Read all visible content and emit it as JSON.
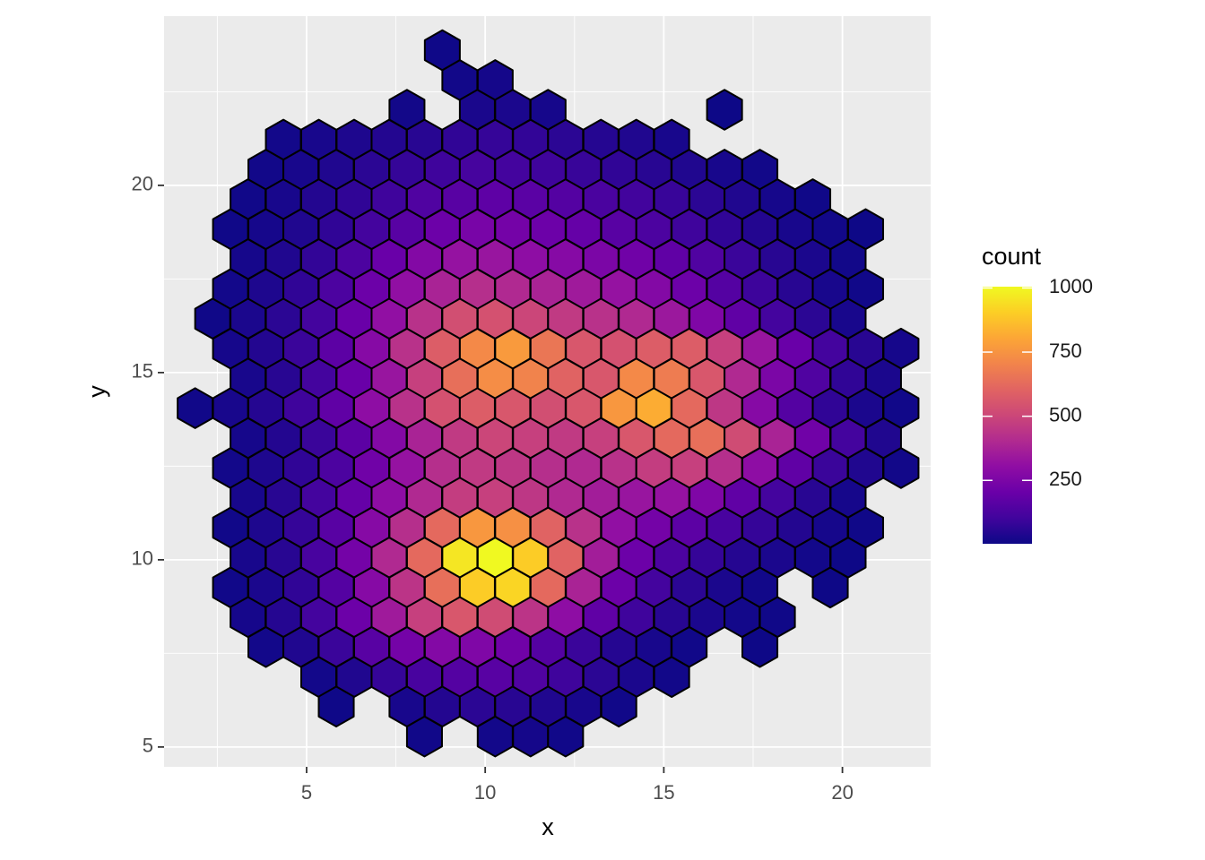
{
  "chart_data": {
    "type": "hexbin",
    "x_label": "x",
    "y_label": "y",
    "legend_title": "count",
    "xlim": [
      1.01,
      22.47
    ],
    "ylim": [
      4.47,
      24.52
    ],
    "xticks": [
      5,
      10,
      15,
      20
    ],
    "yticks": [
      5,
      10,
      15,
      20
    ],
    "grid": true,
    "legend_position": "right",
    "colorbar_ticks": [
      250,
      500,
      750,
      1000
    ],
    "colors": [
      "#0d0887",
      "#41049d",
      "#6a00a8",
      "#8f0da4",
      "#b12a90",
      "#cc4778",
      "#e16462",
      "#f2844b",
      "#fca636",
      "#fcce25",
      "#f0f921"
    ],
    "edgecolor": "#000000",
    "rows": [
      {
        "y": 23.61,
        "x": [
          8.8
        ],
        "values": [
          6
        ]
      },
      {
        "y": 22.81,
        "x": [
          9.29,
          10.28
        ],
        "values": [
          12,
          18
        ]
      },
      {
        "y": 22.02,
        "x": [
          7.81,
          9.78,
          10.77,
          11.76,
          16.7
        ],
        "values": [
          14,
          28,
          30,
          20,
          3
        ]
      },
      {
        "y": 21.22,
        "x": [
          4.35,
          5.34,
          6.33,
          7.31,
          8.3,
          9.29,
          10.28,
          11.27,
          12.25,
          13.24,
          14.23,
          15.22
        ],
        "values": [
          15,
          25,
          35,
          45,
          55,
          70,
          80,
          75,
          60,
          50,
          40,
          25
        ]
      },
      {
        "y": 20.42,
        "x": [
          3.86,
          4.84,
          5.83,
          6.82,
          7.81,
          8.8,
          9.78,
          10.77,
          11.76,
          12.75,
          13.74,
          14.72,
          15.71,
          16.7,
          17.69
        ],
        "values": [
          12,
          25,
          40,
          60,
          80,
          100,
          115,
          110,
          100,
          85,
          70,
          55,
          40,
          25,
          12
        ]
      },
      {
        "y": 19.63,
        "x": [
          3.36,
          4.35,
          5.34,
          6.33,
          7.31,
          8.3,
          9.29,
          10.28,
          11.27,
          12.25,
          13.24,
          14.23,
          15.22,
          16.21,
          17.19,
          18.18,
          19.17
        ],
        "values": [
          10,
          25,
          45,
          70,
          100,
          140,
          160,
          175,
          165,
          150,
          125,
          105,
          85,
          60,
          40,
          20,
          8
        ]
      },
      {
        "y": 18.83,
        "x": [
          2.87,
          3.86,
          4.84,
          5.83,
          6.82,
          7.81,
          8.8,
          9.78,
          10.77,
          11.76,
          12.75,
          13.74,
          14.72,
          15.71,
          16.7,
          17.69,
          18.68,
          19.66,
          20.65
        ],
        "values": [
          8,
          20,
          40,
          70,
          110,
          160,
          210,
          240,
          230,
          210,
          190,
          160,
          130,
          100,
          70,
          45,
          25,
          12,
          5
        ]
      },
      {
        "y": 18.03,
        "x": [
          3.36,
          4.35,
          5.34,
          6.33,
          7.31,
          8.3,
          9.29,
          10.28,
          11.27,
          12.25,
          13.24,
          14.23,
          15.22,
          16.21,
          17.19,
          18.18,
          19.17,
          20.16
        ],
        "values": [
          20,
          40,
          75,
          130,
          200,
          270,
          320,
          330,
          300,
          280,
          250,
          220,
          180,
          140,
          90,
          55,
          30,
          12
        ]
      },
      {
        "y": 17.23,
        "x": [
          2.87,
          3.86,
          4.84,
          5.83,
          6.82,
          7.81,
          8.8,
          9.78,
          10.77,
          11.76,
          12.75,
          13.74,
          14.72,
          15.71,
          16.7,
          17.69,
          18.68,
          19.66,
          20.65
        ],
        "values": [
          15,
          35,
          70,
          130,
          210,
          310,
          380,
          420,
          400,
          380,
          350,
          320,
          270,
          210,
          150,
          95,
          55,
          25,
          10
        ]
      },
      {
        "y": 16.44,
        "x": [
          2.37,
          3.36,
          4.35,
          5.34,
          6.33,
          7.31,
          8.3,
          9.29,
          10.28,
          11.27,
          12.25,
          13.24,
          14.23,
          15.22,
          16.21,
          17.19,
          18.18,
          19.17,
          20.16
        ],
        "values": [
          8,
          30,
          60,
          110,
          200,
          310,
          430,
          530,
          540,
          500,
          460,
          430,
          400,
          340,
          260,
          180,
          110,
          60,
          25
        ]
      },
      {
        "y": 15.64,
        "x": [
          2.87,
          3.86,
          4.84,
          5.83,
          6.82,
          7.81,
          8.8,
          9.78,
          10.77,
          11.76,
          12.75,
          13.74,
          14.72,
          15.71,
          16.7,
          17.69,
          18.68,
          19.66,
          20.65,
          21.64
        ],
        "values": [
          20,
          45,
          90,
          170,
          280,
          430,
          580,
          720,
          770,
          660,
          560,
          540,
          580,
          580,
          480,
          330,
          200,
          110,
          55,
          20
        ]
      },
      {
        "y": 14.84,
        "x": [
          3.36,
          4.35,
          5.34,
          6.33,
          7.31,
          8.3,
          9.29,
          10.28,
          11.27,
          12.25,
          13.24,
          14.23,
          15.22,
          16.21,
          17.19,
          18.18,
          19.17,
          20.16,
          21.15
        ],
        "values": [
          25,
          55,
          110,
          200,
          330,
          480,
          640,
          730,
          700,
          600,
          560,
          720,
          680,
          560,
          400,
          250,
          140,
          70,
          30
        ]
      },
      {
        "y": 14.05,
        "x": [
          1.88,
          2.87,
          3.86,
          4.84,
          5.83,
          6.82,
          7.81,
          8.8,
          9.78,
          10.77,
          11.76,
          12.75,
          13.74,
          14.72,
          15.71,
          16.7,
          17.69,
          18.68,
          19.66,
          20.65,
          21.64
        ],
        "values": [
          10,
          25,
          50,
          100,
          180,
          300,
          430,
          540,
          580,
          560,
          530,
          560,
          760,
          820,
          620,
          450,
          280,
          150,
          70,
          30,
          10
        ]
      },
      {
        "y": 13.25,
        "x": [
          3.36,
          4.35,
          5.34,
          6.33,
          7.31,
          8.3,
          9.29,
          10.28,
          11.27,
          12.25,
          13.24,
          14.23,
          15.22,
          16.21,
          17.19,
          18.18,
          19.17,
          20.16,
          21.15
        ],
        "values": [
          20,
          45,
          90,
          170,
          270,
          380,
          460,
          500,
          480,
          460,
          480,
          560,
          620,
          640,
          520,
          380,
          220,
          110,
          40
        ]
      },
      {
        "y": 12.45,
        "x": [
          2.87,
          3.86,
          4.84,
          5.83,
          6.82,
          7.81,
          8.8,
          9.78,
          10.77,
          11.76,
          12.75,
          13.74,
          14.72,
          15.71,
          16.7,
          17.69,
          18.68,
          19.66,
          20.65,
          21.64
        ],
        "values": [
          15,
          35,
          70,
          130,
          220,
          320,
          420,
          460,
          450,
          420,
          400,
          430,
          470,
          480,
          420,
          300,
          180,
          90,
          40,
          12
        ]
      },
      {
        "y": 11.66,
        "x": [
          3.36,
          4.35,
          5.34,
          6.33,
          7.31,
          8.3,
          9.29,
          10.28,
          11.27,
          12.25,
          13.24,
          14.23,
          15.22,
          16.21,
          17.19,
          18.18,
          19.17,
          20.16
        ],
        "values": [
          25,
          55,
          110,
          190,
          300,
          400,
          470,
          480,
          450,
          400,
          360,
          330,
          320,
          260,
          180,
          110,
          55,
          20
        ]
      },
      {
        "y": 10.86,
        "x": [
          2.87,
          3.86,
          4.84,
          5.83,
          6.82,
          7.81,
          8.8,
          9.78,
          10.77,
          11.76,
          12.75,
          13.74,
          14.72,
          15.71,
          16.7,
          17.69,
          18.68,
          19.66,
          20.65
        ],
        "values": [
          10,
          35,
          80,
          160,
          280,
          420,
          620,
          760,
          740,
          600,
          430,
          310,
          230,
          170,
          120,
          80,
          45,
          20,
          8
        ]
      },
      {
        "y": 10.06,
        "x": [
          3.36,
          4.35,
          5.34,
          6.33,
          7.31,
          8.3,
          9.29,
          10.28,
          11.27,
          12.25,
          13.24,
          14.23,
          15.22,
          16.21,
          17.19,
          18.18,
          19.17,
          20.16
        ],
        "values": [
          25,
          55,
          120,
          230,
          400,
          620,
          960,
          1005,
          900,
          600,
          360,
          210,
          130,
          80,
          50,
          30,
          15,
          5
        ]
      },
      {
        "y": 9.26,
        "x": [
          2.87,
          3.86,
          4.84,
          5.83,
          6.82,
          7.81,
          8.8,
          9.78,
          10.77,
          11.76,
          12.75,
          13.74,
          14.72,
          15.71,
          16.7,
          17.69,
          19.66
        ],
        "values": [
          10,
          30,
          70,
          150,
          280,
          440,
          640,
          900,
          920,
          620,
          380,
          210,
          110,
          60,
          30,
          12,
          5
        ]
      },
      {
        "y": 8.47,
        "x": [
          3.36,
          4.35,
          5.34,
          6.33,
          7.31,
          8.3,
          9.29,
          10.28,
          11.27,
          12.25,
          13.24,
          14.23,
          15.22,
          16.21,
          17.19,
          18.18
        ],
        "values": [
          20,
          50,
          110,
          210,
          350,
          480,
          560,
          520,
          440,
          300,
          180,
          100,
          55,
          30,
          15,
          8
        ]
      },
      {
        "y": 7.67,
        "x": [
          3.86,
          4.84,
          5.83,
          6.82,
          7.81,
          8.8,
          9.78,
          10.77,
          11.76,
          12.75,
          13.74,
          14.72,
          15.71,
          17.69
        ],
        "values": [
          15,
          40,
          90,
          160,
          230,
          270,
          260,
          220,
          150,
          90,
          50,
          25,
          10,
          5
        ]
      },
      {
        "y": 6.87,
        "x": [
          5.34,
          6.33,
          7.31,
          8.3,
          9.29,
          10.28,
          11.27,
          12.25,
          13.24,
          14.23,
          15.22
        ],
        "values": [
          15,
          40,
          80,
          120,
          150,
          160,
          140,
          100,
          60,
          30,
          12
        ]
      },
      {
        "y": 6.08,
        "x": [
          5.83,
          7.81,
          8.8,
          9.78,
          10.77,
          11.76,
          12.75,
          13.74
        ],
        "values": [
          6,
          25,
          45,
          60,
          55,
          40,
          25,
          10
        ]
      },
      {
        "y": 5.28,
        "x": [
          8.3,
          10.28,
          11.27,
          12.25
        ],
        "values": [
          10,
          15,
          18,
          10
        ]
      }
    ]
  }
}
